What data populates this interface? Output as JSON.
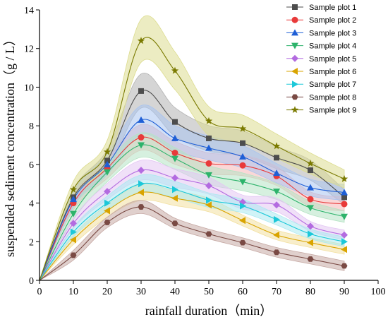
{
  "chart_data": {
    "type": "line",
    "title": "",
    "xlabel": "rainfall duration（min）",
    "ylabel": "suspended sediment concentration（g / L）",
    "xlim": [
      0,
      100
    ],
    "ylim": [
      0,
      14
    ],
    "xticks": [
      "0",
      "10",
      "20",
      "30",
      "40",
      "50",
      "60",
      "70",
      "80",
      "90",
      "100"
    ],
    "yticks": [
      "0",
      "2",
      "4",
      "6",
      "8",
      "10",
      "12",
      "14"
    ],
    "x": [
      0,
      10,
      20,
      30,
      40,
      50,
      60,
      70,
      80,
      90
    ],
    "grid": false,
    "legend_position": "top-right",
    "series": [
      {
        "name": "Sample plot 1",
        "marker": "square",
        "color": "#4d4d4d",
        "band": "#b3b3b3",
        "values": [
          0,
          4.3,
          6.2,
          9.8,
          8.2,
          7.35,
          7.1,
          6.35,
          5.7,
          4.3
        ]
      },
      {
        "name": "Sample plot 2",
        "marker": "circle",
        "color": "#e83a3a",
        "band": "#f6b6b6",
        "values": [
          0,
          4.0,
          5.8,
          7.4,
          6.6,
          6.05,
          5.95,
          5.4,
          4.2,
          3.95
        ]
      },
      {
        "name": "Sample plot 3",
        "marker": "triangle-up",
        "color": "#1f5fd6",
        "band": "#a9c4f0",
        "values": [
          0,
          4.2,
          6.0,
          8.3,
          7.35,
          6.85,
          6.4,
          5.55,
          4.8,
          4.55
        ]
      },
      {
        "name": "Sample plot 4",
        "marker": "triangle-down",
        "color": "#2db36b",
        "band": "#b5e3c4",
        "values": [
          0,
          3.45,
          5.6,
          7.0,
          6.3,
          5.45,
          5.1,
          4.6,
          3.75,
          3.3
        ]
      },
      {
        "name": "Sample plot 5",
        "marker": "diamond",
        "color": "#b36be0",
        "band": "#e3c6f3",
        "values": [
          0,
          2.95,
          4.6,
          5.7,
          5.3,
          4.9,
          4.05,
          3.9,
          2.8,
          2.35
        ]
      },
      {
        "name": "Sample plot 6",
        "marker": "triangle-left",
        "color": "#d9a400",
        "band": "#f2e0a0",
        "values": [
          0,
          2.1,
          3.6,
          4.55,
          4.25,
          3.9,
          3.1,
          2.35,
          1.95,
          1.6
        ]
      },
      {
        "name": "Sample plot 7",
        "marker": "triangle-right",
        "color": "#1cc8d9",
        "band": "#abe9f0",
        "values": [
          0,
          2.5,
          4.0,
          5.0,
          4.7,
          4.15,
          3.85,
          3.15,
          2.4,
          2.0
        ]
      },
      {
        "name": "Sample plot 8",
        "marker": "hexagon",
        "color": "#7a4a44",
        "band": "#c6a9a4",
        "values": [
          0,
          1.3,
          3.0,
          3.8,
          2.95,
          2.4,
          1.95,
          1.45,
          1.1,
          0.75
        ]
      },
      {
        "name": "Sample plot 9",
        "marker": "star",
        "color": "#7a7a00",
        "band": "#dcdc8f",
        "values": [
          0,
          4.7,
          6.65,
          12.4,
          10.85,
          8.25,
          7.85,
          6.95,
          6.05,
          5.25
        ]
      }
    ]
  }
}
